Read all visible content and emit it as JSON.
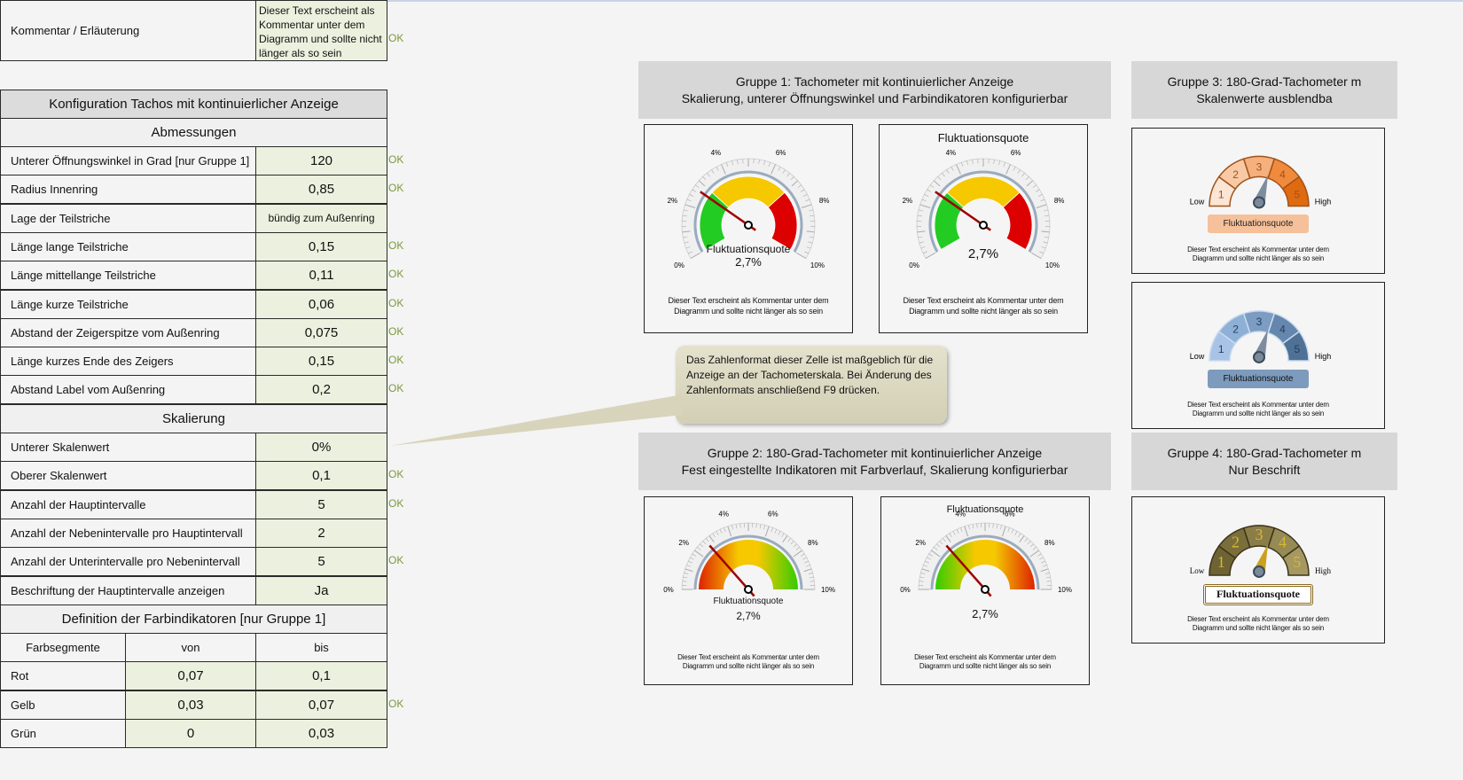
{
  "comment_row": {
    "label": "Kommentar / Erläuterung",
    "value": "Dieser Text erscheint als Kommentar unter dem Diagramm und sollte nicht länger als so sein",
    "status": "OK"
  },
  "config": {
    "title": "Konfiguration Tachos mit kontinuierlicher Anzeige",
    "section_dimensions": "Abmessungen",
    "dimensions": [
      {
        "label": "Unterer Öffnungswinkel in Grad [nur Gruppe 1]",
        "value": "120",
        "status": "OK"
      },
      {
        "label": "Radius Innenring",
        "value": "0,85",
        "status": "OK"
      },
      {
        "label": "Lage der Teilstriche",
        "value": "bündig zum Außenring",
        "status": ""
      },
      {
        "label": "Länge lange Teilstriche",
        "value": "0,15",
        "status": "OK"
      },
      {
        "label": "Länge mittellange Teilstriche",
        "value": "0,11",
        "status": "OK"
      },
      {
        "label": "Länge kurze Teilstriche",
        "value": "0,06",
        "status": "OK"
      },
      {
        "label": "Abstand der Zeigerspitze vom Außenring",
        "value": "0,075",
        "status": "OK"
      },
      {
        "label": "Länge kurzes Ende des Zeigers",
        "value": "0,15",
        "status": "OK"
      },
      {
        "label": "Abstand Label vom Außenring",
        "value": "0,2",
        "status": "OK"
      }
    ],
    "section_scaling": "Skalierung",
    "scaling": [
      {
        "label": "Unterer Skalenwert",
        "value": "0%",
        "status": ""
      },
      {
        "label": "Oberer Skalenwert",
        "value": "0,1",
        "status": "OK"
      },
      {
        "label": "Anzahl der Hauptintervalle",
        "value": "5",
        "status": "OK"
      },
      {
        "label": "Anzahl der Nebenintervalle pro Hauptintervall",
        "value": "2",
        "status": ""
      },
      {
        "label": "Anzahl der Unterintervalle pro Nebenintervall",
        "value": "5",
        "status": "OK"
      },
      {
        "label": "Beschriftung der Hauptintervalle anzeigen",
        "value": "Ja",
        "status": ""
      }
    ],
    "section_colors": "Definition der Farbindikatoren [nur Gruppe 1]",
    "color_headers": [
      "Farbsegmente",
      "von",
      "bis"
    ],
    "colors": [
      {
        "label": "Rot",
        "from": "0,07",
        "to": "0,1",
        "status": ""
      },
      {
        "label": "Gelb",
        "from": "0,03",
        "to": "0,07",
        "status": "OK"
      },
      {
        "label": "Grün",
        "from": "0",
        "to": "0,03",
        "status": ""
      }
    ]
  },
  "callout": "Das Zahlenformat dieser Zelle ist maßgeblich für die Anzeige an der Tachometerskala. Bei Änderung des Zahlenformats anschließend F9 drücken.",
  "groups": {
    "g1": {
      "line1": "Gruppe 1: Tachometer mit kontinuierlicher Anzeige",
      "line2": "Skalierung, unterer Öffnungswinkel und Farbindikatoren konfigurierbar"
    },
    "g2": {
      "line1": "Gruppe 2: 180-Grad-Tachometer mit kontinuierlicher Anzeige",
      "line2": "Fest eingestellte Indikatoren mit Farbverlauf, Skalierung konfigurierbar"
    },
    "g3": {
      "line1": "Gruppe 3: 180-Grad-Tachometer m",
      "line2": "Skalenwerte ausblendba"
    },
    "g4": {
      "line1": "Gruppe 4: 180-Grad-Tachometer m",
      "line2": "Nur Beschrift"
    }
  },
  "gauge": {
    "title": "Fluktuationsquote",
    "value": 0.027,
    "value_label": "2,7%",
    "min": 0,
    "max": 0.1,
    "tick_labels": [
      "0%",
      "2%",
      "4%",
      "6%",
      "8%",
      "10%"
    ],
    "comment_line1": "Dieser Text erscheint als Kommentar unter dem",
    "comment_line2": "Diagramm und sollte nicht länger als so sein",
    "segments": [
      {
        "color": "#22cc22",
        "from": 0,
        "to": 0.03
      },
      {
        "color": "#f5c800",
        "from": 0.03,
        "to": 0.07
      },
      {
        "color": "#dd0000",
        "from": 0.07,
        "to": 0.1
      }
    ],
    "seg_labels": [
      "1",
      "2",
      "3",
      "4",
      "5"
    ],
    "low": "Low",
    "high": "High"
  }
}
